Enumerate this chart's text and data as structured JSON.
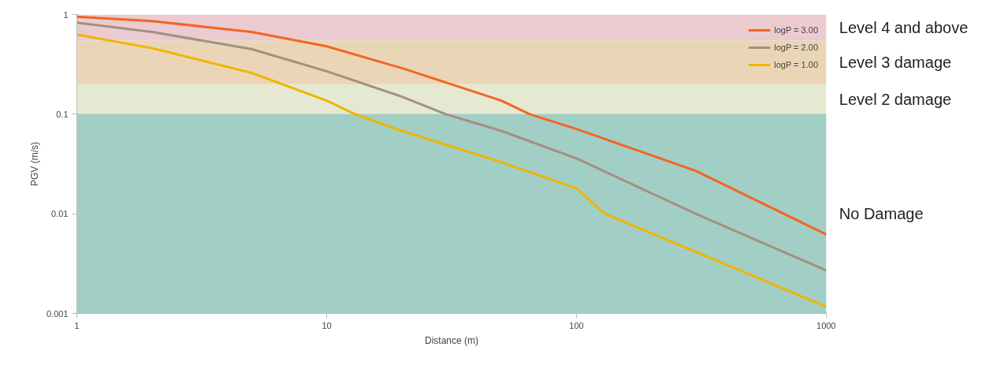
{
  "chart_data": {
    "type": "line",
    "xlabel": "Distance (m)",
    "ylabel": "PGV (m/s)",
    "log": "xy",
    "xlim": [
      1,
      1000
    ],
    "ylim": [
      0.001,
      1
    ],
    "xticks": [
      1,
      10,
      100,
      1000
    ],
    "yticks": [
      0.001,
      0.01,
      0.1,
      1
    ],
    "grid": "y",
    "legend": "top right",
    "marker": "none",
    "line_style": "solid",
    "series": [
      {
        "name": "logP = 3.00",
        "color": "#f26522",
        "x": [
          1,
          2,
          5,
          10,
          20,
          50,
          65,
          100,
          300,
          1000
        ],
        "values": [
          0.95,
          0.86,
          0.67,
          0.48,
          0.29,
          0.137,
          0.1,
          0.071,
          0.027,
          0.0062
        ]
      },
      {
        "name": "logP = 2.00",
        "color": "#a39081",
        "x": [
          1,
          2,
          5,
          10,
          20,
          30,
          50,
          100,
          300,
          1000
        ],
        "values": [
          0.83,
          0.67,
          0.45,
          0.27,
          0.15,
          0.1,
          0.068,
          0.036,
          0.01,
          0.0027
        ]
      },
      {
        "name": "logP = 1.00",
        "color": "#f0b400",
        "x": [
          1,
          2,
          5,
          10,
          13,
          20,
          50,
          100,
          130,
          1000
        ],
        "values": [
          0.63,
          0.46,
          0.26,
          0.137,
          0.1,
          0.068,
          0.033,
          0.018,
          0.01,
          0.00117
        ]
      }
    ],
    "bands": [
      {
        "axis": "y",
        "from": 0.001,
        "to": 0.1,
        "label": "No Damage",
        "color": "#a2cfc5"
      },
      {
        "axis": "y",
        "from": 0.1,
        "to": 0.2,
        "label": "Level 2 damage",
        "color": "#e6e9d1"
      },
      {
        "axis": "y",
        "from": 0.2,
        "to": 0.55,
        "label": "Level 3 damage",
        "color": "#ead6b6"
      },
      {
        "axis": "y",
        "from": 0.55,
        "to": 1,
        "label": "Level 4 and above",
        "color": "#ebcbcf"
      }
    ]
  }
}
